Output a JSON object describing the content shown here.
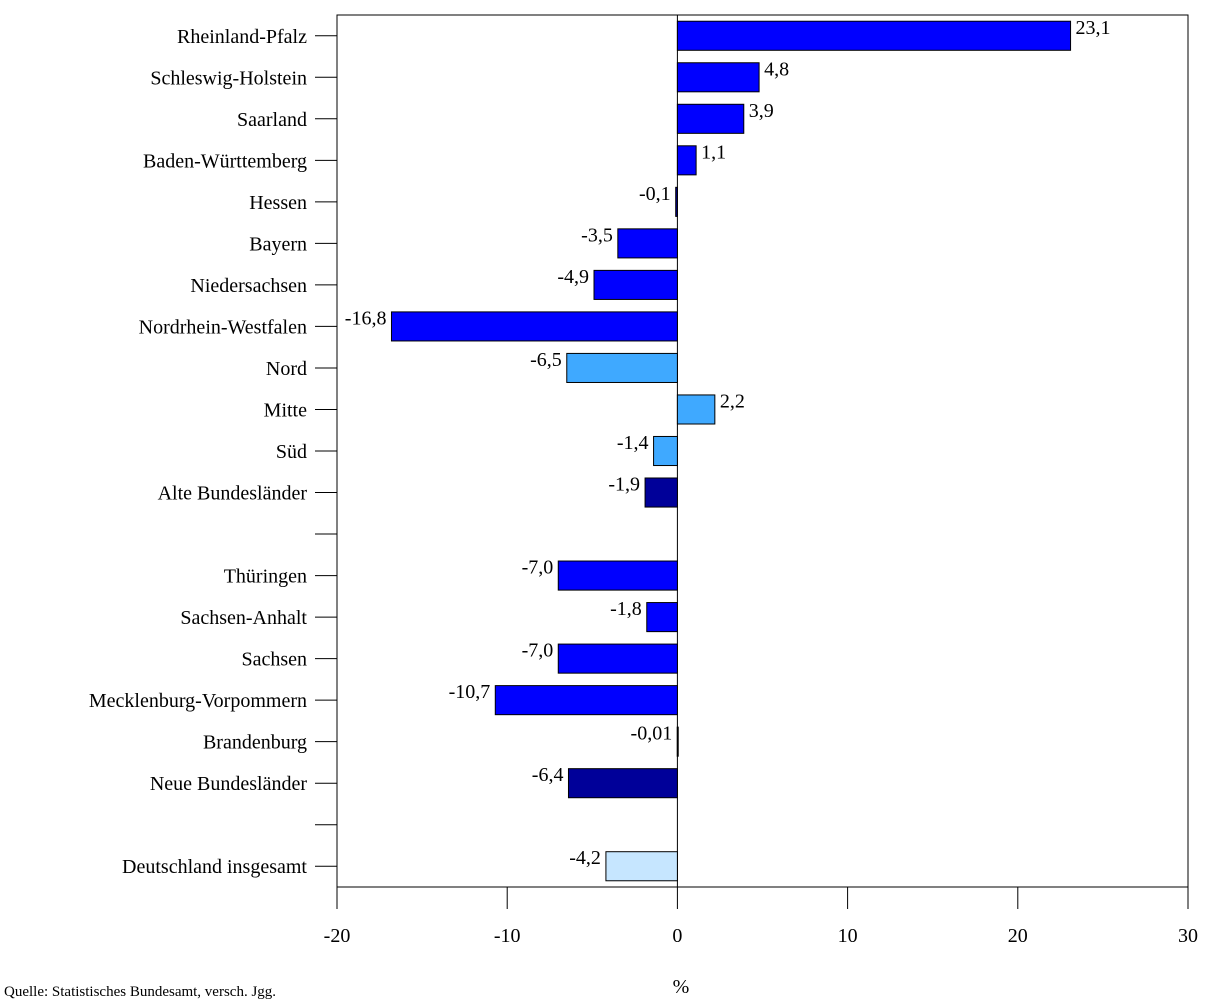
{
  "chart_data": {
    "type": "bar",
    "orientation": "horizontal",
    "categories": [
      "Rheinland-Pfalz",
      "Schleswig-Holstein",
      "Saarland",
      "Baden-Württemberg",
      "Hessen",
      "Bayern",
      "Niedersachsen",
      "Nordrhein-Westfalen",
      "Nord",
      "Mitte",
      "Süd",
      "Alte Bundesländer",
      "",
      "Thüringen",
      "Sachsen-Anhalt",
      "Sachsen",
      "Mecklenburg-Vorpommern",
      "Brandenburg",
      "Neue Bundesländer",
      "",
      "Deutschland insgesamt"
    ],
    "values": [
      23.1,
      4.8,
      3.9,
      1.1,
      -0.1,
      -3.5,
      -4.9,
      -16.8,
      -6.5,
      2.2,
      -1.4,
      -1.9,
      null,
      -7.0,
      -1.8,
      -7.0,
      -10.7,
      -0.01,
      -6.4,
      null,
      -4.2
    ],
    "value_labels": [
      "23,1",
      "4,8",
      "3,9",
      "1,1",
      "-0,1",
      "-3,5",
      "-4,9",
      "-16,8",
      "-6,5",
      "2,2",
      "-1,4",
      "-1,9",
      "",
      "-7,0",
      "-1,8",
      "-7,0",
      "-10,7",
      "-0,01",
      "-6,4",
      "",
      "-4,2"
    ],
    "bar_colors": [
      "#0000ff",
      "#0000ff",
      "#0000ff",
      "#0000ff",
      "#000099",
      "#0000ff",
      "#0000ff",
      "#0000ff",
      "#3fa9ff",
      "#3fa9ff",
      "#3fa9ff",
      "#000099",
      "",
      "#0000ff",
      "#0000ff",
      "#0000ff",
      "#0000ff",
      "#0000ff",
      "#000099",
      "",
      "#c6e6ff"
    ],
    "xlim": [
      -20,
      30
    ],
    "xticks": [
      -20,
      -10,
      0,
      10,
      20,
      30
    ],
    "xtick_labels": [
      "-20",
      "-10",
      "0",
      "10",
      "20",
      "30"
    ],
    "xlabel": "%",
    "ylabel": "",
    "title": "",
    "grid": false,
    "legend": "none"
  },
  "source_note": "Quelle: Statistisches Bundesamt, versch. Jgg."
}
